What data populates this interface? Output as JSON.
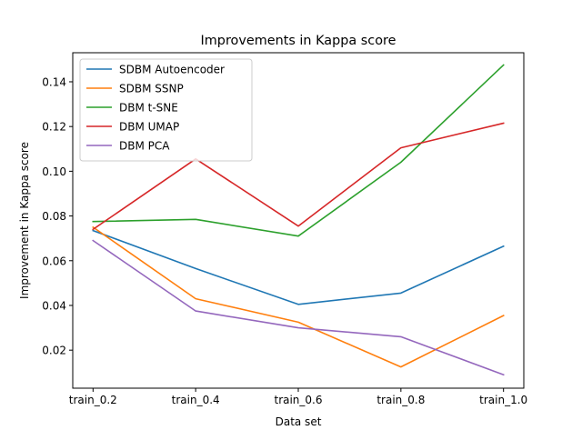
{
  "chart_data": {
    "type": "line",
    "title": "Improvements in Kappa score",
    "xlabel": "Data set",
    "ylabel": "Improvement in Kappa score",
    "categories": [
      "train_0.2",
      "train_0.4",
      "train_0.6",
      "train_0.8",
      "train_1.0"
    ],
    "ylim": [
      0.003,
      0.153
    ],
    "yticks": [
      0.02,
      0.04,
      0.06,
      0.08,
      0.1,
      0.12,
      0.14
    ],
    "ytick_labels": [
      "0.02",
      "0.04",
      "0.06",
      "0.08",
      "0.10",
      "0.12",
      "0.14"
    ],
    "grid": false,
    "legend_position": "upper-left",
    "series": [
      {
        "name": "SDBM Autoencoder",
        "color": "#1f77b4",
        "values": [
          0.0735,
          0.0565,
          0.0405,
          0.0455,
          0.0665
        ]
      },
      {
        "name": "SDBM SSNP",
        "color": "#ff7f0e",
        "values": [
          0.075,
          0.043,
          0.0325,
          0.0125,
          0.0355
        ]
      },
      {
        "name": "DBM t-SNE",
        "color": "#2ca02c",
        "values": [
          0.0775,
          0.0785,
          0.071,
          0.104,
          0.1475
        ]
      },
      {
        "name": "DBM UMAP",
        "color": "#d62728",
        "values": [
          0.074,
          0.1055,
          0.0755,
          0.1105,
          0.1215
        ]
      },
      {
        "name": "DBM PCA",
        "color": "#9467bd",
        "values": [
          0.069,
          0.0375,
          0.03,
          0.026,
          0.009
        ]
      }
    ]
  }
}
